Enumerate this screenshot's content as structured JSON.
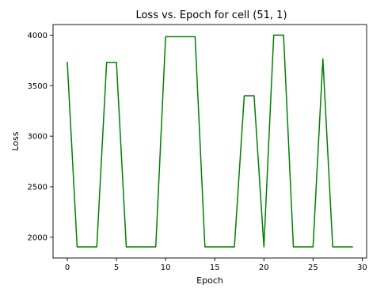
{
  "chart_data": {
    "type": "line",
    "title": "Loss vs. Epoch for cell (51, 1)",
    "xlabel": "Epoch",
    "ylabel": "Loss",
    "xlim": [
      -1.45,
      30.45
    ],
    "ylim": [
      1795,
      4105
    ],
    "x_ticks": [
      0,
      5,
      10,
      15,
      20,
      25,
      30
    ],
    "y_ticks": [
      2000,
      2500,
      3000,
      3500,
      4000
    ],
    "grid": false,
    "legend": "none",
    "series": [
      {
        "color": "#008000",
        "x": [
          0,
          1,
          2,
          3,
          4,
          5,
          6,
          7,
          8,
          9,
          10,
          11,
          12,
          13,
          14,
          15,
          16,
          17,
          18,
          19,
          20,
          21,
          22,
          23,
          24,
          25,
          26,
          27,
          28,
          29
        ],
        "values": [
          3730,
          1905,
          1905,
          1905,
          3730,
          3730,
          1905,
          1905,
          1905,
          1905,
          3985,
          3985,
          3985,
          3985,
          1905,
          1905,
          1905,
          1905,
          3400,
          3400,
          1905,
          4000,
          4000,
          1905,
          1905,
          1905,
          3765,
          1905,
          1905,
          1905
        ]
      }
    ]
  }
}
